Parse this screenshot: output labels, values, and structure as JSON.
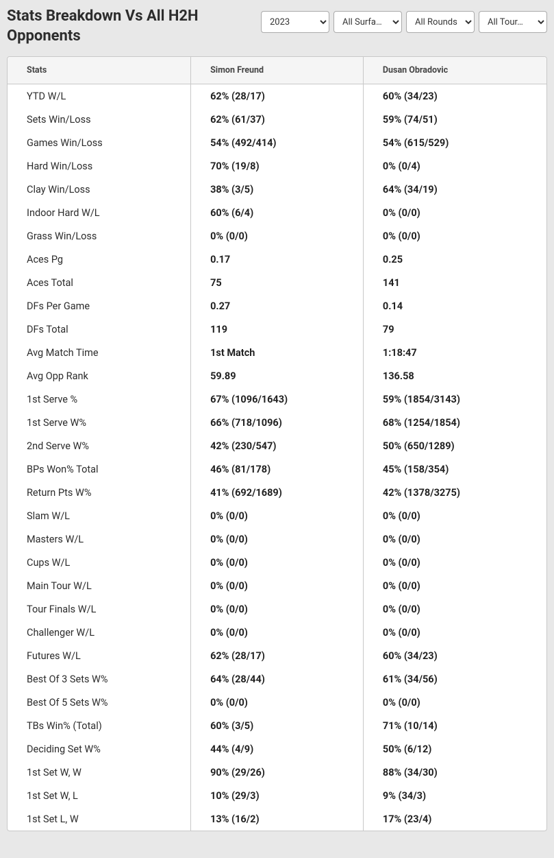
{
  "header": {
    "title": "Stats Breakdown Vs All H2H Opponents"
  },
  "filters": {
    "year": "2023",
    "surface": "All Surfa…",
    "rounds": "All Rounds",
    "tour": "All Tour…"
  },
  "table": {
    "columns": [
      "Stats",
      "Simon Freund",
      "Dusan Obradovic"
    ],
    "rows": [
      [
        "YTD W/L",
        "62% (28/17)",
        "60% (34/23)"
      ],
      [
        "Sets Win/Loss",
        "62% (61/37)",
        "59% (74/51)"
      ],
      [
        "Games Win/Loss",
        "54% (492/414)",
        "54% (615/529)"
      ],
      [
        "Hard Win/Loss",
        "70% (19/8)",
        "0% (0/4)"
      ],
      [
        "Clay Win/Loss",
        "38% (3/5)",
        "64% (34/19)"
      ],
      [
        "Indoor Hard W/L",
        "60% (6/4)",
        "0% (0/0)"
      ],
      [
        "Grass Win/Loss",
        "0% (0/0)",
        "0% (0/0)"
      ],
      [
        "Aces Pg",
        "0.17",
        "0.25"
      ],
      [
        "Aces Total",
        "75",
        "141"
      ],
      [
        "DFs Per Game",
        "0.27",
        "0.14"
      ],
      [
        "DFs Total",
        "119",
        "79"
      ],
      [
        "Avg Match Time",
        "1st Match",
        "1:18:47"
      ],
      [
        "Avg Opp Rank",
        "59.89",
        "136.58"
      ],
      [
        "1st Serve %",
        "67% (1096/1643)",
        "59% (1854/3143)"
      ],
      [
        "1st Serve W%",
        "66% (718/1096)",
        "68% (1254/1854)"
      ],
      [
        "2nd Serve W%",
        "42% (230/547)",
        "50% (650/1289)"
      ],
      [
        "BPs Won% Total",
        "46% (81/178)",
        "45% (158/354)"
      ],
      [
        "Return Pts W%",
        "41% (692/1689)",
        "42% (1378/3275)"
      ],
      [
        "Slam W/L",
        "0% (0/0)",
        "0% (0/0)"
      ],
      [
        "Masters W/L",
        "0% (0/0)",
        "0% (0/0)"
      ],
      [
        "Cups W/L",
        "0% (0/0)",
        "0% (0/0)"
      ],
      [
        "Main Tour W/L",
        "0% (0/0)",
        "0% (0/0)"
      ],
      [
        "Tour Finals W/L",
        "0% (0/0)",
        "0% (0/0)"
      ],
      [
        "Challenger W/L",
        "0% (0/0)",
        "0% (0/0)"
      ],
      [
        "Futures W/L",
        "62% (28/17)",
        "60% (34/23)"
      ],
      [
        "Best Of 3 Sets W%",
        "64% (28/44)",
        "61% (34/56)"
      ],
      [
        "Best Of 5 Sets W%",
        "0% (0/0)",
        "0% (0/0)"
      ],
      [
        "TBs Win% (Total)",
        "60% (3/5)",
        "71% (10/14)"
      ],
      [
        "Deciding Set W%",
        "44% (4/9)",
        "50% (6/12)"
      ],
      [
        "1st Set W, W",
        "90% (29/26)",
        "88% (34/30)"
      ],
      [
        "1st Set W, L",
        "10% (29/3)",
        "9% (34/3)"
      ],
      [
        "1st Set L, W",
        "13% (16/2)",
        "17% (23/4)"
      ]
    ]
  }
}
